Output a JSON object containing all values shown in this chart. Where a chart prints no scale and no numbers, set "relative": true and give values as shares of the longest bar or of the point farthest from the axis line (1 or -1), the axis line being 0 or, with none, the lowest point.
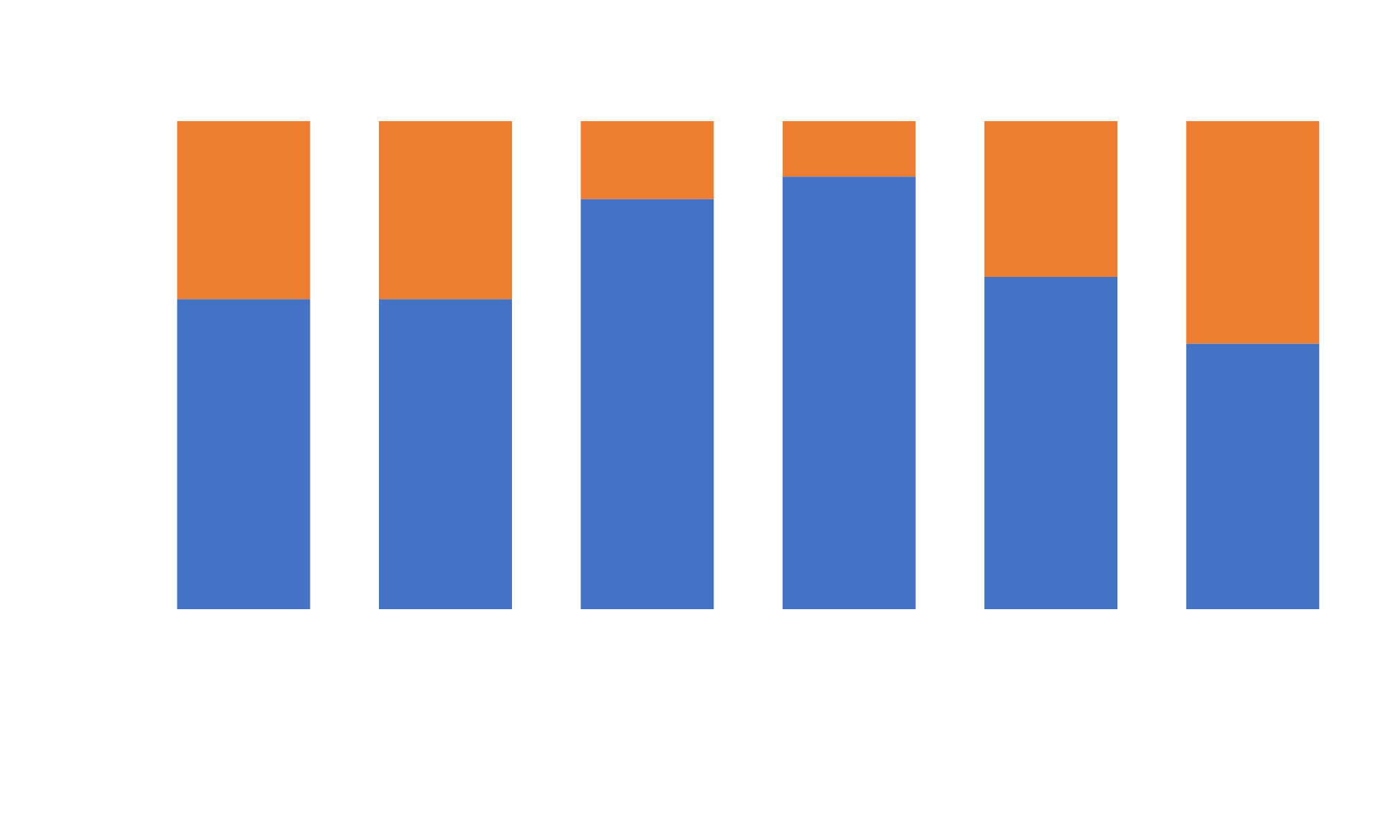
{
  "chart_data": {
    "type": "bar",
    "stacked": true,
    "relative": true,
    "categories": [
      null,
      null,
      null,
      null,
      null,
      null
    ],
    "series": [
      {
        "color": "#4472c4",
        "values": [
          0.635,
          0.635,
          0.84,
          0.886,
          0.681,
          0.544
        ]
      },
      {
        "color": "#ed7d31",
        "values": [
          0.365,
          0.365,
          0.16,
          0.114,
          0.319,
          0.456
        ]
      }
    ]
  }
}
